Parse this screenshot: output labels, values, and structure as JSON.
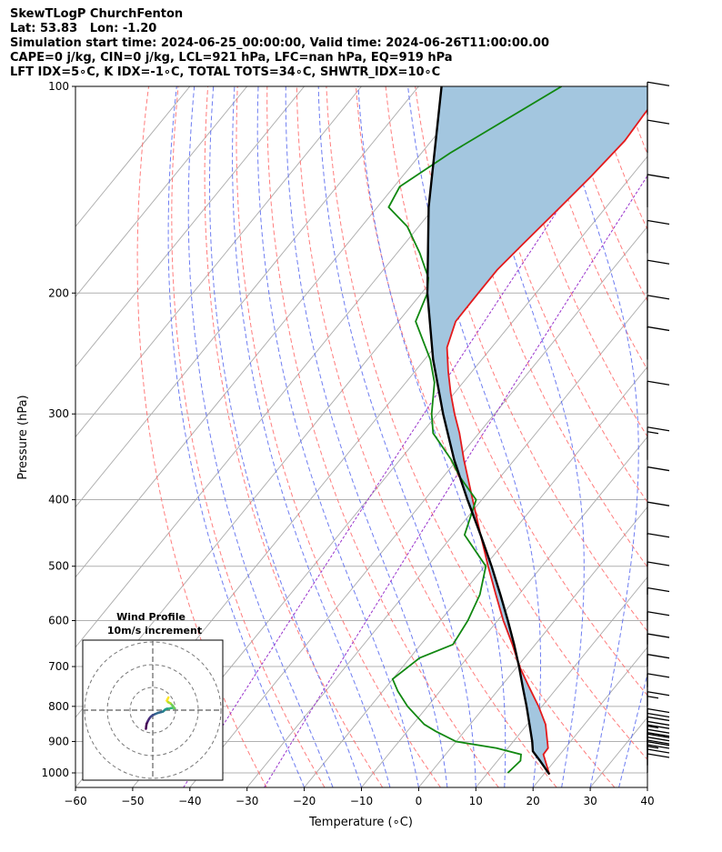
{
  "header": {
    "line1": "SkewTLogP ChurchFenton",
    "line2": "Lat: 53.83   Lon: -1.20",
    "line3": "Simulation start time: 2024-06-25_00:00:00, Valid time: 2024-06-26T11:00:00.00",
    "line4": "CAPE=0 j/kg, CIN=0 j/kg, LCL=921 hPa, LFC=nan hPa, EQ=919 hPa",
    "line5": "LFT IDX=5∘C, K IDX=-1∘C, TOTAL TOTS=34∘C, SHWTR_IDX=10∘C"
  },
  "chart_data": {
    "type": "line",
    "subtype": "skew-T log-P diagram",
    "xlabel": "Temperature (∘C)",
    "ylabel": "Pressure (hPa)",
    "xlim": [
      -60,
      40
    ],
    "ylim": [
      1050,
      100
    ],
    "y_scale": "log",
    "skew": "isotherms slanted up-right",
    "grid": true,
    "x_ticks": [
      -60,
      -50,
      -40,
      -30,
      -20,
      -10,
      0,
      10,
      20,
      30,
      40
    ],
    "y_ticks": [
      1000,
      900,
      800,
      700,
      600,
      500,
      400,
      300,
      200,
      100
    ],
    "colors": {
      "temperature": "#e41a1c",
      "dewpoint": "#118811",
      "parcel": "#000000",
      "shade": "#a3c6df",
      "dry_adiabat": "#ff6666",
      "moist_adiabat": "#5566ee",
      "mixing_ratio": "#9933cc",
      "isotherm": "#aaaaaa"
    },
    "series": [
      {
        "key": "temperature",
        "points": [
          [
            1005,
            21.0
          ],
          [
            940,
            17.1
          ],
          [
            920,
            17.0
          ],
          [
            850,
            13.2
          ],
          [
            800,
            9.4
          ],
          [
            750,
            5.0
          ],
          [
            700,
            0.4
          ],
          [
            650,
            -4.0
          ],
          [
            600,
            -9.0
          ],
          [
            550,
            -14.0
          ],
          [
            500,
            -19.4
          ],
          [
            450,
            -25.2
          ],
          [
            400,
            -31.6
          ],
          [
            350,
            -38.8
          ],
          [
            320,
            -43.4
          ],
          [
            300,
            -47.0
          ],
          [
            280,
            -50.6
          ],
          [
            260,
            -54.2
          ],
          [
            240,
            -57.8
          ],
          [
            220,
            -60.0
          ],
          [
            200,
            -60.1
          ],
          [
            185,
            -60.1
          ],
          [
            170,
            -59.3
          ],
          [
            150,
            -58.0
          ],
          [
            135,
            -57.0
          ],
          [
            120,
            -56.2
          ],
          [
            110,
            -56.6
          ],
          [
            100,
            -56.8
          ]
        ]
      },
      {
        "key": "dewpoint",
        "points": [
          [
            1000,
            13.5
          ],
          [
            960,
            14.0
          ],
          [
            940,
            13.2
          ],
          [
            920,
            8.0
          ],
          [
            900,
            0.0
          ],
          [
            870,
            -5.0
          ],
          [
            850,
            -8.0
          ],
          [
            800,
            -13.5
          ],
          [
            760,
            -17.4
          ],
          [
            730,
            -20.0
          ],
          [
            700,
            -19.0
          ],
          [
            680,
            -18.3
          ],
          [
            650,
            -14.4
          ],
          [
            600,
            -15.2
          ],
          [
            550,
            -16.8
          ],
          [
            500,
            -19.8
          ],
          [
            450,
            -28.0
          ],
          [
            400,
            -31.0
          ],
          [
            370,
            -37.2
          ],
          [
            350,
            -41.0
          ],
          [
            320,
            -48.0
          ],
          [
            300,
            -51.0
          ],
          [
            270,
            -55.0
          ],
          [
            250,
            -59.0
          ],
          [
            220,
            -67.0
          ],
          [
            200,
            -69.0
          ],
          [
            190,
            -71.0
          ],
          [
            175,
            -76.0
          ],
          [
            160,
            -82.0
          ],
          [
            150,
            -88.0
          ],
          [
            140,
            -89.0
          ],
          [
            125,
            -85.0
          ],
          [
            100,
            -75.0
          ]
        ]
      },
      {
        "key": "parcel",
        "points": [
          [
            1005,
            21.0
          ],
          [
            960,
            17.4
          ],
          [
            930,
            14.8
          ],
          [
            900,
            13.3
          ],
          [
            850,
            10.4
          ],
          [
            800,
            7.3
          ],
          [
            750,
            3.9
          ],
          [
            700,
            0.3
          ],
          [
            650,
            -3.7
          ],
          [
            600,
            -8.2
          ],
          [
            550,
            -13.2
          ],
          [
            500,
            -18.8
          ],
          [
            450,
            -25.2
          ],
          [
            400,
            -32.5
          ],
          [
            350,
            -40.5
          ],
          [
            300,
            -49.0
          ],
          [
            250,
            -58.5
          ],
          [
            200,
            -69.0
          ],
          [
            150,
            -81.0
          ],
          [
            100,
            -96.0
          ]
        ]
      }
    ],
    "wind_barbs": {
      "pressures": [
        1000,
        975,
        950,
        925,
        900,
        850,
        800,
        750,
        700,
        650,
        600,
        550,
        500,
        450,
        400,
        350,
        300,
        250,
        225,
        200,
        175,
        150,
        125,
        110
      ],
      "speeds_kt": [
        40,
        35,
        30,
        25,
        20,
        15,
        10,
        10,
        10,
        10,
        10,
        10,
        10,
        10,
        10,
        15,
        10,
        10,
        10,
        10,
        10,
        10,
        10,
        10
      ]
    },
    "hodograph": {
      "title": "Wind Profile",
      "subtitle": "10m/s increment",
      "points": [
        [
          -3.0,
          -8.2
        ],
        [
          -2.9,
          -7.2
        ],
        [
          -2.7,
          -6.0
        ],
        [
          -2.2,
          -4.9
        ],
        [
          -1.6,
          -3.8
        ],
        [
          -0.9,
          -2.9
        ],
        [
          0.0,
          -2.2
        ],
        [
          1.1,
          -1.7
        ],
        [
          2.3,
          -1.2
        ],
        [
          3.5,
          -0.9
        ],
        [
          4.5,
          -0.6
        ],
        [
          5.0,
          -0.2
        ],
        [
          5.5,
          0.3
        ],
        [
          6.2,
          0.6
        ],
        [
          7.2,
          0.7
        ],
        [
          8.0,
          0.9
        ],
        [
          9.0,
          1.0
        ],
        [
          9.6,
          0.8
        ],
        [
          8.8,
          1.9
        ],
        [
          7.8,
          3.0
        ],
        [
          6.8,
          3.5
        ],
        [
          6.2,
          4.2
        ],
        [
          6.6,
          5.0
        ],
        [
          6.9,
          5.6
        ]
      ]
    }
  }
}
